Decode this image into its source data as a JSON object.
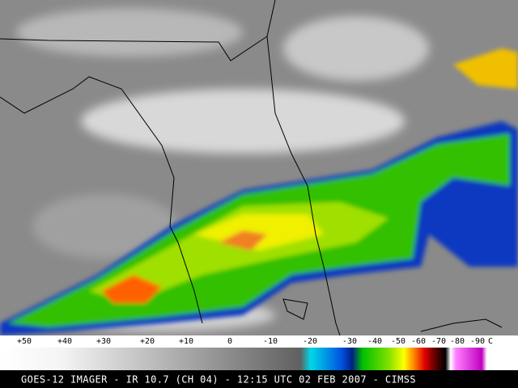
{
  "colorbar": {
    "labels": [
      "+50",
      "+40",
      "+30",
      "+20",
      "+10",
      "0",
      "-10",
      "-20",
      "-30",
      "-40",
      "-50",
      "-60",
      "-70",
      "-80",
      "-90",
      "C"
    ]
  },
  "caption": "GOES-12 IMAGER - IR 10.7 (CH 04) - 12:15 UTC 02 FEB 2007 - CIMSS"
}
